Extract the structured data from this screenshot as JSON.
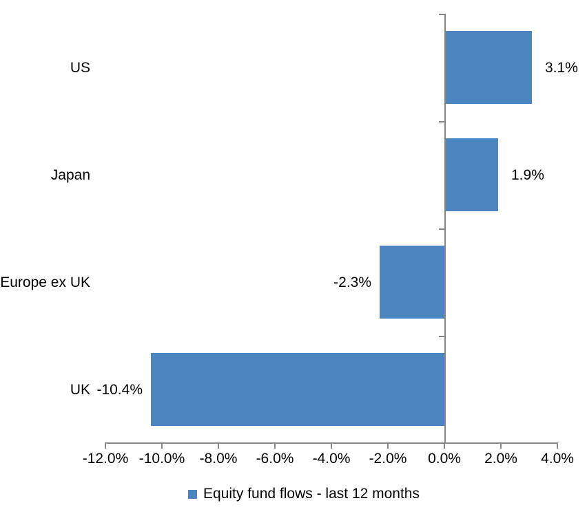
{
  "chart_data": {
    "type": "bar",
    "orientation": "horizontal",
    "categories": [
      "US",
      "Japan",
      "Europe ex UK",
      "UK"
    ],
    "series": [
      {
        "name": "Equity fund flows - last 12 months",
        "values": [
          3.1,
          1.9,
          -2.3,
          -10.4
        ],
        "data_labels": [
          "3.1%",
          "1.9%",
          "-2.3%",
          "-10.4%"
        ]
      }
    ],
    "x_axis": {
      "min": -12,
      "max": 4,
      "tick_step": 2,
      "tick_values": [
        -12,
        -10,
        -8,
        -6,
        -4,
        -2,
        0,
        2,
        4
      ],
      "tick_labels": [
        "-12.0%",
        "-10.0%",
        "-8.0%",
        "-6.0%",
        "-4.0%",
        "-2.0%",
        "0.0%",
        "2.0%",
        "4.0%"
      ]
    },
    "legend": {
      "position": "bottom"
    },
    "grid": false,
    "colors": {
      "bar": "#4D86BF",
      "axis": "#868686",
      "text": "#000000",
      "background": "#FFFFFF"
    }
  }
}
